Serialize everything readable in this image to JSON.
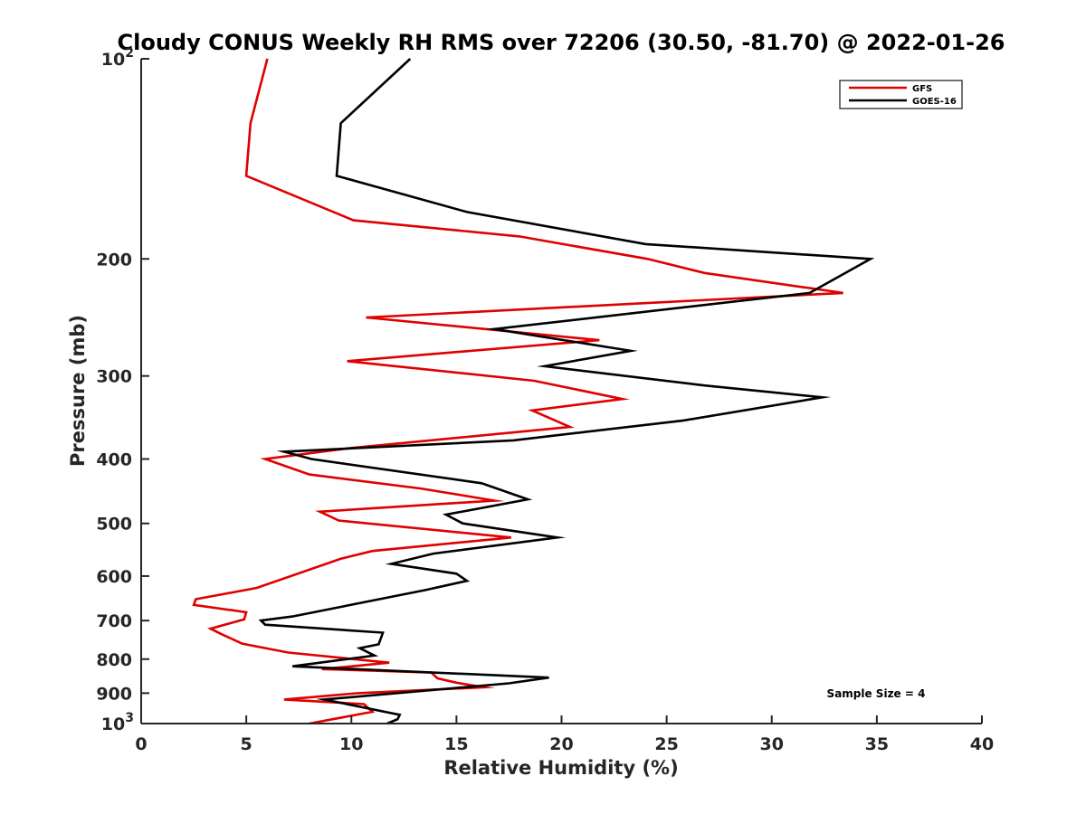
{
  "chart_data": {
    "type": "line",
    "title": "Cloudy CONUS Weekly RH RMS over 72206 (30.50, -81.70) @ 2022-01-26",
    "xlabel": "Relative Humidity (%)",
    "ylabel": "Pressure (mb)",
    "xlim": [
      0,
      40
    ],
    "ylim": [
      100,
      1000
    ],
    "yscale": "log",
    "yreversed": true,
    "x_ticks": [
      0,
      5,
      10,
      15,
      20,
      25,
      30,
      35,
      40
    ],
    "y_ticks": [
      {
        "value": 100,
        "label": "10",
        "sup": "2"
      },
      {
        "value": 200,
        "label": "200"
      },
      {
        "value": 300,
        "label": "300"
      },
      {
        "value": 400,
        "label": "400"
      },
      {
        "value": 500,
        "label": "500"
      },
      {
        "value": 600,
        "label": "600"
      },
      {
        "value": 700,
        "label": "700"
      },
      {
        "value": 800,
        "label": "800"
      },
      {
        "value": 900,
        "label": "900"
      },
      {
        "value": 1000,
        "label": "10",
        "sup": "3"
      }
    ],
    "legend_position": "top-right",
    "grid": false,
    "annotation": "Sample Size = 4",
    "series": [
      {
        "name": "GFS",
        "color": "#e00000",
        "points": [
          [
            6.0,
            100
          ],
          [
            5.2,
            125
          ],
          [
            5.0,
            150
          ],
          [
            10.1,
            175
          ],
          [
            18.0,
            185
          ],
          [
            24.1,
            200
          ],
          [
            26.8,
            210
          ],
          [
            33.4,
            225
          ],
          [
            10.7,
            245
          ],
          [
            21.8,
            265
          ],
          [
            9.8,
            285
          ],
          [
            18.7,
            305
          ],
          [
            22.9,
            325
          ],
          [
            18.6,
            338
          ],
          [
            20.4,
            358
          ],
          [
            10.0,
            385
          ],
          [
            5.9,
            400
          ],
          [
            8.0,
            422
          ],
          [
            13.3,
            443
          ],
          [
            16.8,
            462
          ],
          [
            8.5,
            480
          ],
          [
            9.4,
            495
          ],
          [
            17.6,
            525
          ],
          [
            11.0,
            550
          ],
          [
            9.5,
            565
          ],
          [
            5.5,
            625
          ],
          [
            2.6,
            650
          ],
          [
            2.5,
            663
          ],
          [
            5.0,
            680
          ],
          [
            4.9,
            697
          ],
          [
            3.3,
            720
          ],
          [
            3.8,
            733
          ],
          [
            4.8,
            758
          ],
          [
            7.0,
            782
          ],
          [
            11.8,
            810
          ],
          [
            8.6,
            828
          ],
          [
            13.8,
            838
          ],
          [
            14.1,
            855
          ],
          [
            15.0,
            868
          ],
          [
            16.3,
            882
          ],
          [
            10.3,
            900
          ],
          [
            6.8,
            920
          ],
          [
            10.6,
            935
          ],
          [
            11.0,
            960
          ],
          [
            8.0,
            1000
          ]
        ]
      },
      {
        "name": "GOES-16",
        "color": "#000000",
        "points": [
          [
            12.8,
            100
          ],
          [
            9.5,
            125
          ],
          [
            9.3,
            150
          ],
          [
            15.5,
            170
          ],
          [
            24.0,
            190
          ],
          [
            34.7,
            200
          ],
          [
            31.8,
            225
          ],
          [
            16.8,
            255
          ],
          [
            23.3,
            275
          ],
          [
            19.2,
            290
          ],
          [
            26.8,
            310
          ],
          [
            32.4,
            323
          ],
          [
            25.8,
            350
          ],
          [
            17.7,
            375
          ],
          [
            6.8,
            390
          ],
          [
            8.1,
            400
          ],
          [
            16.2,
            435
          ],
          [
            18.4,
            460
          ],
          [
            14.5,
            485
          ],
          [
            15.3,
            500
          ],
          [
            19.8,
            525
          ],
          [
            13.9,
            555
          ],
          [
            11.9,
            575
          ],
          [
            15.0,
            595
          ],
          [
            15.5,
            610
          ],
          [
            13.5,
            630
          ],
          [
            7.2,
            690
          ],
          [
            5.7,
            700
          ],
          [
            5.9,
            710
          ],
          [
            11.5,
            730
          ],
          [
            11.3,
            760
          ],
          [
            10.4,
            770
          ],
          [
            11.1,
            790
          ],
          [
            7.2,
            820
          ],
          [
            19.4,
            853
          ],
          [
            17.5,
            870
          ],
          [
            8.7,
            920
          ],
          [
            12.3,
            970
          ],
          [
            12.2,
            985
          ],
          [
            11.7,
            1000
          ]
        ]
      }
    ]
  }
}
